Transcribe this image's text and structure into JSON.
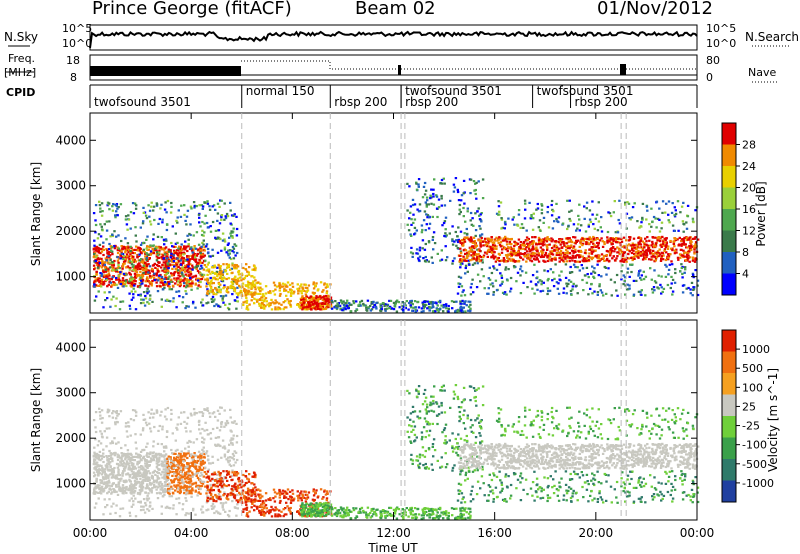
{
  "header": {
    "station": "Prince George (fitACF)",
    "beam": "Beam 02",
    "date": "01/Nov/2012"
  },
  "top_labels": {
    "nsky": "N.Sky",
    "nsky_hi": "10^5",
    "nsky_lo": "10^0",
    "nsearch": "N.Search",
    "freq": "Freq.",
    "freq_unit": "[MHz]",
    "freq_hi": "18",
    "freq_lo": "8",
    "nave_hi": "80",
    "nave_lo": "0",
    "nave": "Nave",
    "cpid": "CPID"
  },
  "cpid_segments": [
    {
      "label": "twofsound 3501",
      "start_hr": 0.0,
      "end_hr": 6.0,
      "row": 1
    },
    {
      "label": "normal 150",
      "start_hr": 6.0,
      "end_hr": 9.5,
      "row": 0
    },
    {
      "label": "rbsp 200",
      "start_hr": 9.5,
      "end_hr": 12.3,
      "row": 1
    },
    {
      "label": "twofsound 3501",
      "start_hr": 12.3,
      "end_hr": 21.2,
      "row": 0
    },
    {
      "label": "rbsp 200",
      "start_hr": 12.3,
      "end_hr": 14.5,
      "row": 1
    },
    {
      "label": "twofsound 3501",
      "start_hr": 17.5,
      "end_hr": 21.2,
      "row": 0
    },
    {
      "label": "rbsp 200",
      "start_hr": 19.0,
      "end_hr": 21.2,
      "row": 1
    }
  ],
  "mode_lines_hr": [
    6.0,
    9.5,
    12.3,
    12.45,
    21.0,
    21.2
  ],
  "chart_data": [
    {
      "type": "heatmap",
      "name": "Power",
      "ylabel": "Slant Range [km]",
      "yticks": [
        "1000",
        "2000",
        "3000",
        "4000"
      ],
      "ylim": [
        200,
        4600
      ],
      "xlim": [
        0,
        24
      ],
      "colorbar_label": "Power [dB]",
      "colorbar_ticks": [
        "4",
        "8",
        "12",
        "16",
        "20",
        "24",
        "28"
      ],
      "colors": [
        "#0000ff",
        "#2060c0",
        "#3a7a4a",
        "#4fa84f",
        "#9ad03a",
        "#e8d000",
        "#f08a00",
        "#e00000"
      ]
    },
    {
      "type": "heatmap",
      "name": "Velocity",
      "ylabel": "Slant Range [km]",
      "xlabel": "Time UT",
      "xticks": [
        "00:00",
        "04:00",
        "08:00",
        "12:00",
        "16:00",
        "20:00",
        "00:00"
      ],
      "yticks": [
        "1000",
        "2000",
        "3000",
        "4000"
      ],
      "ylim": [
        200,
        4600
      ],
      "xlim": [
        0,
        24
      ],
      "colorbar_label": "Velocity [m s^-1]",
      "colorbar_ticks": [
        "1000",
        "500",
        "100",
        "25",
        "-25",
        "-100",
        "-500",
        "-1000"
      ],
      "colors": [
        "#2040a0",
        "#2f7a6a",
        "#3aa04a",
        "#6fcf3a",
        "#c8c8c0",
        "#f5a020",
        "#f07010",
        "#e02000"
      ]
    }
  ]
}
